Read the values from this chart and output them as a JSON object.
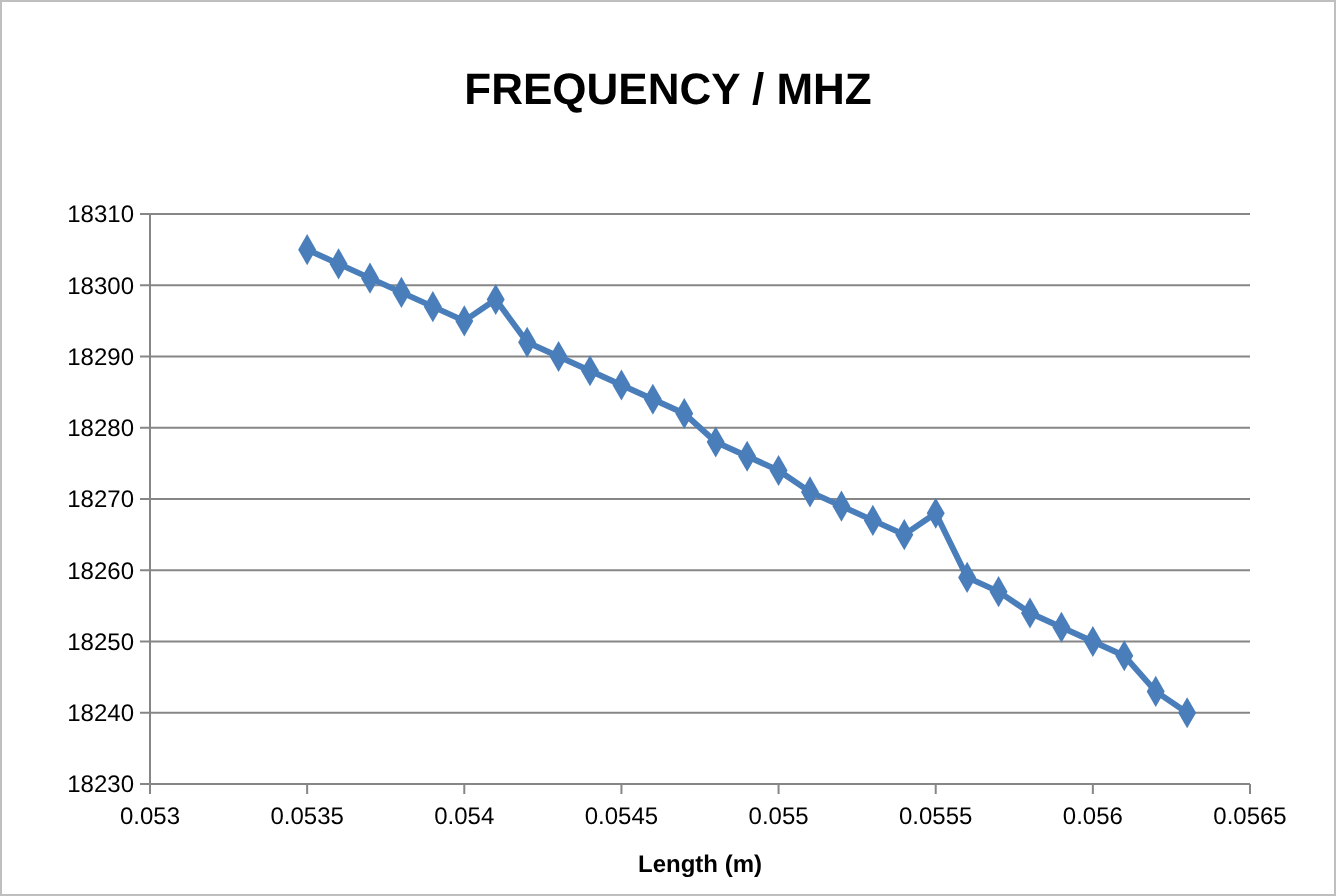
{
  "chart_data": {
    "type": "line",
    "title": "FREQUENCY / MHZ",
    "xlabel": "Length (m)",
    "x": [
      0.0535,
      0.0536,
      0.0537,
      0.0538,
      0.0539,
      0.054,
      0.0541,
      0.0542,
      0.0543,
      0.0544,
      0.0545,
      0.0546,
      0.0547,
      0.0548,
      0.0549,
      0.055,
      0.0551,
      0.0552,
      0.0553,
      0.0554,
      0.0555,
      0.0556,
      0.0557,
      0.0558,
      0.0559,
      0.056,
      0.0561,
      0.0562,
      0.0563
    ],
    "series": [
      {
        "color": "#4a7ebb",
        "values": [
          18305,
          18303,
          18301,
          18299,
          18297,
          18295,
          18298,
          18292,
          18290,
          18288,
          18286,
          18284,
          18282,
          18278,
          18276,
          18274,
          18271,
          18269,
          18267,
          18265,
          18268,
          18259,
          18257,
          18254,
          18252,
          18250,
          18248,
          18243,
          18240
        ]
      }
    ],
    "xlim": [
      0.053,
      0.0565
    ],
    "xticks": [
      0.053,
      0.0535,
      0.054,
      0.0545,
      0.055,
      0.0555,
      0.056,
      0.0565
    ],
    "ylim": [
      18230,
      18310
    ],
    "yticks": [
      18230,
      18240,
      18250,
      18260,
      18270,
      18280,
      18290,
      18300,
      18310
    ],
    "grid": "y",
    "marker": "diamond"
  }
}
